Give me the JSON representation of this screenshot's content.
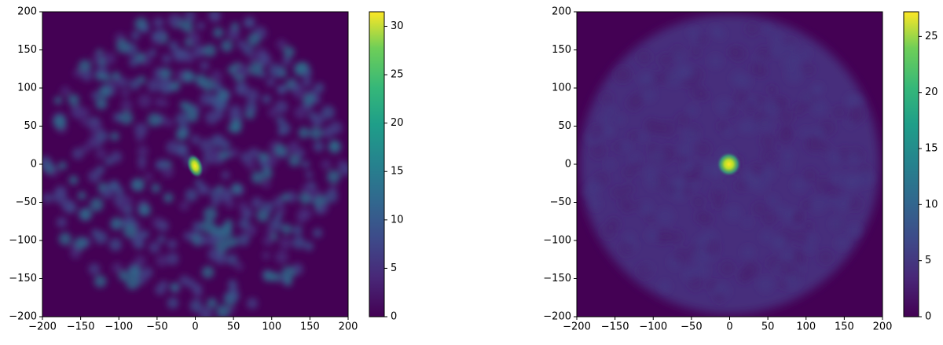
{
  "chart_data": [
    {
      "type": "heatmap",
      "cmap": "viridis",
      "xlim": [
        -200,
        200
      ],
      "ylim": [
        -200,
        200
      ],
      "xticks": [
        {
          "value": -200,
          "label": "−200"
        },
        {
          "value": -150,
          "label": "−150"
        },
        {
          "value": -100,
          "label": "−100"
        },
        {
          "value": -50,
          "label": "−50"
        },
        0,
        50,
        100,
        150,
        200
      ],
      "yticks": [
        {
          "value": -200,
          "label": "−200"
        },
        {
          "value": -150,
          "label": "−150"
        },
        {
          "value": -100,
          "label": "−100"
        },
        {
          "value": -50,
          "label": "−50"
        },
        0,
        50,
        100,
        150,
        200
      ],
      "colorbar": {
        "lim": [
          0,
          31.5
        ],
        "ticks": [
          0,
          5,
          10,
          15,
          20,
          25,
          30
        ]
      }
    },
    {
      "type": "heatmap",
      "cmap": "viridis",
      "xlim": [
        -200,
        200
      ],
      "ylim": [
        -200,
        200
      ],
      "xticks": [
        {
          "value": -200,
          "label": "−200"
        },
        {
          "value": -150,
          "label": "−150"
        },
        {
          "value": -100,
          "label": "−100"
        },
        {
          "value": -50,
          "label": "−50"
        },
        0,
        50,
        100,
        150,
        200
      ],
      "yticks": [
        {
          "value": -200,
          "label": "−200"
        },
        {
          "value": -150,
          "label": "−150"
        },
        {
          "value": -100,
          "label": "−100"
        },
        {
          "value": -50,
          "label": "−50"
        },
        0,
        50,
        100,
        150,
        200
      ],
      "colorbar": {
        "lim": [
          0,
          27.2
        ],
        "ticks": [
          0,
          5,
          10,
          15,
          20,
          25
        ]
      }
    }
  ]
}
